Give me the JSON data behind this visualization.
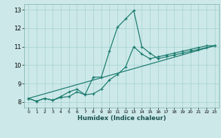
{
  "xlabel": "Humidex (Indice chaleur)",
  "bg_color": "#cce8e8",
  "line_color": "#1a7a6e",
  "grid_color": "#aad4d4",
  "xlim": [
    -0.5,
    23.5
  ],
  "ylim": [
    7.7,
    13.3
  ],
  "xticks": [
    0,
    1,
    2,
    3,
    4,
    5,
    6,
    7,
    8,
    9,
    10,
    11,
    12,
    13,
    14,
    15,
    16,
    17,
    18,
    19,
    20,
    21,
    22,
    23
  ],
  "yticks": [
    8,
    9,
    10,
    11,
    12,
    13
  ],
  "line1_x": [
    0,
    1,
    2,
    3,
    4,
    5,
    6,
    7,
    8,
    9,
    10,
    11,
    12,
    13,
    14,
    15,
    16,
    17,
    18,
    19,
    20,
    21,
    22,
    23
  ],
  "line1_y": [
    8.2,
    8.05,
    8.2,
    8.1,
    8.25,
    8.3,
    8.55,
    8.4,
    9.35,
    9.35,
    10.75,
    12.05,
    12.5,
    12.95,
    11.0,
    10.65,
    10.35,
    10.45,
    10.55,
    10.65,
    10.75,
    10.85,
    10.95,
    11.05
  ],
  "line2_x": [
    0,
    1,
    2,
    3,
    4,
    5,
    6,
    7,
    8,
    9,
    10,
    11,
    12,
    13,
    14,
    15,
    16,
    17,
    18,
    19,
    20,
    21,
    22,
    23
  ],
  "line2_y": [
    8.2,
    8.05,
    8.2,
    8.1,
    8.3,
    8.55,
    8.7,
    8.4,
    8.45,
    8.7,
    9.2,
    9.5,
    9.9,
    11.0,
    10.6,
    10.35,
    10.45,
    10.55,
    10.65,
    10.75,
    10.85,
    10.95,
    11.05,
    11.05
  ],
  "line3_x": [
    0,
    23
  ],
  "line3_y": [
    8.2,
    11.05
  ]
}
